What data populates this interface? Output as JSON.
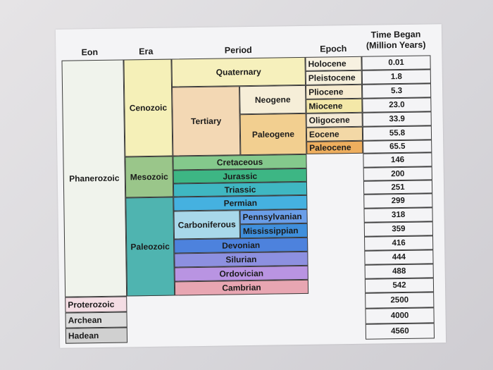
{
  "headers": {
    "eon": "Eon",
    "era": "Era",
    "period": "Period",
    "epoch": "Epoch",
    "time_line1": "Time Began",
    "time_line2": "(Million Years)"
  },
  "eons": {
    "phanerozoic": "Phanerozoic",
    "proterozoic": "Proterozoic",
    "archean": "Archean",
    "hadean": "Hadean"
  },
  "eras": {
    "cenozoic": "Cenozoic",
    "mesozoic": "Mesozoic",
    "paleozoic": "Paleozoic"
  },
  "periods": {
    "quaternary": "Quaternary",
    "tertiary": "Tertiary",
    "neogene": "Neogene",
    "paleogene": "Paleogene",
    "cretaceous": "Cretaceous",
    "jurassic": "Jurassic",
    "triassic": "Triassic",
    "permian": "Permian",
    "carboniferous": "Carboniferous",
    "pennsylvanian": "Pennsylvanian",
    "mississippian": "Mississippian",
    "devonian": "Devonian",
    "silurian": "Silurian",
    "ordovician": "Ordovician",
    "cambrian": "Cambrian"
  },
  "epochs": {
    "holocene": "Holocene",
    "pleistocene": "Pleistocene",
    "pliocene": "Pliocene",
    "miocene": "Miocene",
    "oligocene": "Oligocene",
    "eocene": "Eocene",
    "paleocene": "Paleocene"
  },
  "times": [
    "0.01",
    "1.8",
    "5.3",
    "23.0",
    "33.9",
    "55.8",
    "65.5",
    "146",
    "200",
    "251",
    "299",
    "318",
    "359",
    "416",
    "444",
    "488",
    "542",
    "2500",
    "4000",
    "4560"
  ],
  "colors": {
    "sheet": "#f4f4f6",
    "phanerozoic": "#f0f3ec",
    "cenozoic": "#f5f0b8",
    "quaternary": "#f6f0bc",
    "tertiary": "#f3d8b4",
    "neogene": "#f6eed8",
    "paleogene": "#f2cf90",
    "holocene": "#f7f1e1",
    "pleistocene": "#f6f0dc",
    "pliocene": "#f7ecd0",
    "miocene": "#f4e8a8",
    "oligocene": "#f4ead6",
    "eocene": "#f3d8a6",
    "paleocene": "#eeae5e",
    "mesozoic": "#9ac68a",
    "paleozoic": "#4fb4b0",
    "cretaceous": "#84c98c",
    "jurassic": "#3db684",
    "triassic": "#3fb7c2",
    "permian": "#45b1e0",
    "carboniferous": "#a8d8ea",
    "pennsylvanian": "#6a9ee8",
    "mississippian": "#3f8fdc",
    "devonian": "#4d82dd",
    "silurian": "#8d90e0",
    "ordovician": "#b994e2",
    "cambrian": "#e8a6b2",
    "proterozoic": "#f4dde4",
    "archean": "#dcdcdc",
    "hadean": "#d0d0d0"
  }
}
